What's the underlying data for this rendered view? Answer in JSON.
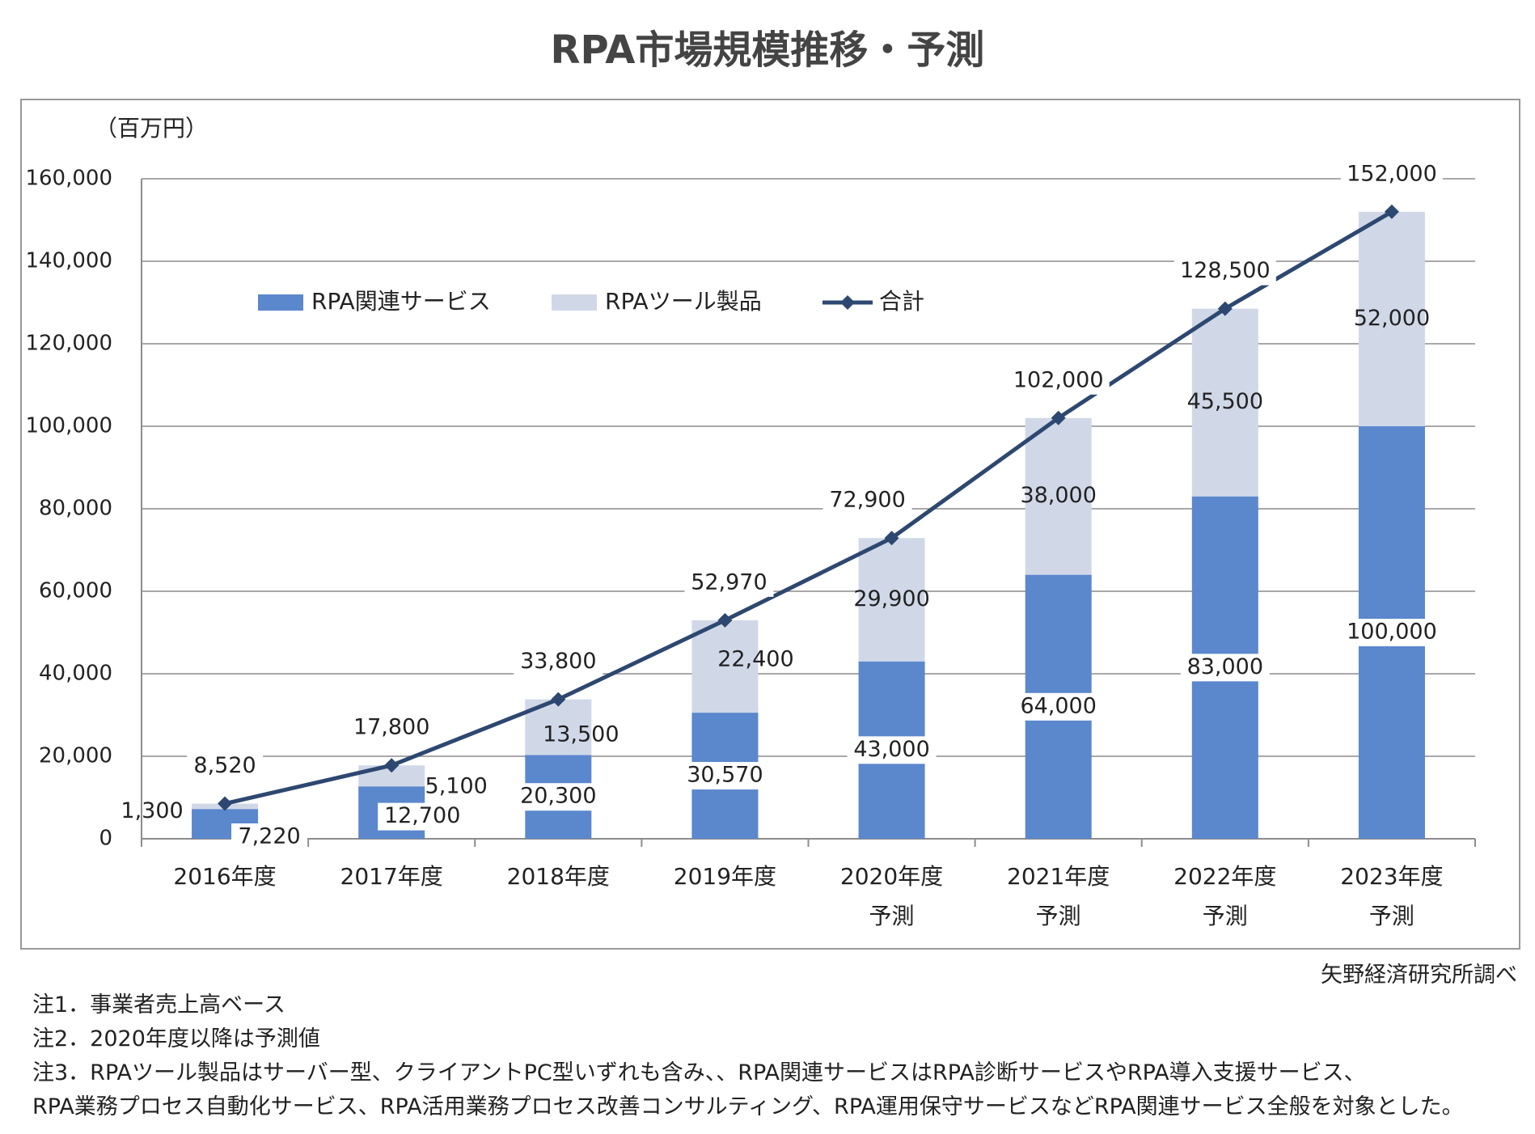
{
  "title": "RPA市場規模推移・予測",
  "unit_label": "（百万円）",
  "source": "矢野経済研究所調べ",
  "notes": [
    "注1．事業者売上高ベース",
    "注2．2020年度以降は予測値",
    "注3．RPAツール製品はサーバー型、クライアントPC型いずれも含み、、RPA関連サービスはRPA診断サービスやRPA導入支援サービス、",
    "RPA業務プロセス自動化サービス、RPA活用業務プロセス改善コンサルティング、RPA運用保守サービスなどRPA関連サービス全般を対象とした。"
  ],
  "colors": {
    "service": "#5B87CD",
    "tool": "#D0D8E8",
    "total_line": "#2D4870",
    "grid": "#8C8C8C",
    "frame": "#999999"
  },
  "chart_data": {
    "type": "bar",
    "stacked": true,
    "categories": [
      "2016年度",
      "2017年度",
      "2018年度",
      "2019年度",
      "2020年度",
      "2021年度",
      "2022年度",
      "2023年度"
    ],
    "category_sublabels": [
      "",
      "",
      "",
      "",
      "予測",
      "予測",
      "予測",
      "予測"
    ],
    "ylim": [
      0,
      160000
    ],
    "yticks": [
      0,
      20000,
      40000,
      60000,
      80000,
      100000,
      120000,
      140000,
      160000
    ],
    "ytick_labels": [
      "0",
      "20,000",
      "40,000",
      "60,000",
      "80,000",
      "100,000",
      "120,000",
      "140,000",
      "160,000"
    ],
    "ylabel": "（百万円）",
    "grid": true,
    "legend_position": "top-left",
    "series": [
      {
        "name": "RPA関連サービス",
        "kind": "bar",
        "color": "#5B87CD",
        "values": [
          7220,
          12700,
          20300,
          30570,
          43000,
          64000,
          83000,
          100000
        ],
        "labels": [
          "7,220",
          "12,700",
          "20,300",
          "30,570",
          "43,000",
          "64,000",
          "83,000",
          "100,000"
        ]
      },
      {
        "name": "RPAツール製品",
        "kind": "bar",
        "color": "#D0D8E8",
        "values": [
          1300,
          5100,
          13500,
          22400,
          29900,
          38000,
          45500,
          52000
        ],
        "labels": [
          "1,300",
          "5,100",
          "13,500",
          "22,400",
          "29,900",
          "38,000",
          "45,500",
          "52,000"
        ]
      },
      {
        "name": "合計",
        "kind": "line",
        "color": "#2D4870",
        "values": [
          8520,
          17800,
          33800,
          52970,
          72900,
          102000,
          128500,
          152000
        ],
        "labels": [
          "8,520",
          "17,800",
          "33,800",
          "52,970",
          "72,900",
          "102,000",
          "128,500",
          "152,000"
        ]
      }
    ]
  }
}
